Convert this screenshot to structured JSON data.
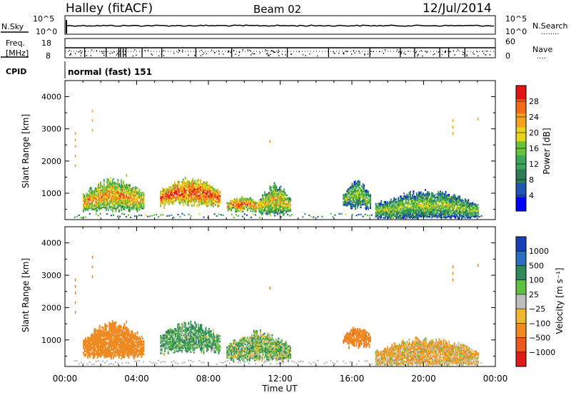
{
  "header": {
    "station": "Halley (fitACF)",
    "beam": "Beam 02",
    "date": "12/Jul/2014"
  },
  "noise_panel": {
    "left_label": "N.Sky",
    "right_label": "N.Search",
    "right_sub": "........",
    "left_ticks": [
      "10^5",
      "10^0"
    ],
    "right_ticks": [
      "10^5",
      "10^0"
    ]
  },
  "freq_panel": {
    "left_label_1": "Freq.",
    "left_label_2": "[MHz]",
    "right_label": "Nave",
    "right_sub": "....",
    "left_ticks": [
      "18",
      "8"
    ],
    "right_ticks": [
      "60",
      "0"
    ]
  },
  "cpid_panel": {
    "label": "CPID",
    "value": "normal (fast) 151"
  },
  "x_axis": {
    "label": "Time UT",
    "ticks": [
      "00:00",
      "04:00",
      "08:00",
      "12:00",
      "16:00",
      "20:00",
      "00:00"
    ]
  },
  "colors": {
    "power": [
      "#0000ff",
      "#1f56b5",
      "#2f7a57",
      "#3ca65a",
      "#66c33a",
      "#e6d51a",
      "#f4a21c",
      "#f26a1c",
      "#e21616"
    ],
    "velocity": [
      "#1a3fb5",
      "#2c6fbf",
      "#2f8a5a",
      "#5ec240",
      "#bdbdbd",
      "#f1b730",
      "#ef8a22",
      "#ea5a1a",
      "#e01a1a"
    ]
  },
  "chart_data": [
    {
      "type": "heatmap",
      "title": "",
      "ylabel": "Slant Range [km]",
      "xlabel": "",
      "xlim": [
        0,
        24
      ],
      "ylim": [
        180,
        4500
      ],
      "y_ticks": [
        "1000",
        "2000",
        "3000",
        "4000"
      ],
      "y_tick_values": [
        1000,
        2000,
        3000,
        4000
      ],
      "colorbar": {
        "label": "Power [dB]",
        "ticks": [
          "4",
          "8",
          "12",
          "16",
          "20",
          "24",
          "28"
        ],
        "range": [
          0,
          30
        ]
      },
      "echo_regions": [
        {
          "t_start": 1.0,
          "t_end": 4.4,
          "r_low": 500,
          "r_high": 1500,
          "mean_db": 16
        },
        {
          "t_start": 5.3,
          "t_end": 8.6,
          "r_low": 700,
          "r_high": 1500,
          "mean_db": 20
        },
        {
          "t_start": 9.0,
          "t_end": 10.8,
          "r_low": 500,
          "r_high": 900,
          "mean_db": 18
        },
        {
          "t_start": 10.8,
          "t_end": 12.6,
          "r_low": 400,
          "r_high": 1300,
          "mean_db": 14
        },
        {
          "t_start": 15.5,
          "t_end": 17.0,
          "r_low": 600,
          "r_high": 1400,
          "mean_db": 10
        },
        {
          "t_start": 17.3,
          "t_end": 23.0,
          "r_low": 250,
          "r_high": 1100,
          "mean_db": 10
        }
      ]
    },
    {
      "type": "heatmap",
      "title": "",
      "ylabel": "Slant Range [km]",
      "xlabel": "Time UT",
      "xlim": [
        0,
        24
      ],
      "ylim": [
        180,
        4500
      ],
      "y_ticks": [
        "1000",
        "2000",
        "3000",
        "4000"
      ],
      "y_tick_values": [
        1000,
        2000,
        3000,
        4000
      ],
      "colorbar": {
        "label": "Velocity [m s⁻¹]",
        "ticks": [
          "1000",
          "500",
          "100",
          "25",
          "−25",
          "−100",
          "−500",
          "−1000"
        ],
        "range": [
          -1000,
          1000
        ]
      },
      "echo_regions": [
        {
          "t_start": 1.0,
          "t_end": 4.4,
          "r_low": 500,
          "r_high": 1600,
          "mean_velocity": -300
        },
        {
          "t_start": 5.3,
          "t_end": 8.6,
          "r_low": 700,
          "r_high": 1600,
          "mean_velocity": 100
        },
        {
          "t_start": 9.0,
          "t_end": 12.6,
          "r_low": 400,
          "r_high": 1300,
          "mean_velocity": 50
        },
        {
          "t_start": 15.5,
          "t_end": 17.0,
          "r_low": 900,
          "r_high": 1400,
          "mean_velocity": -400
        },
        {
          "t_start": 17.3,
          "t_end": 23.0,
          "r_low": 250,
          "r_high": 1100,
          "mean_velocity": -80
        }
      ]
    }
  ]
}
